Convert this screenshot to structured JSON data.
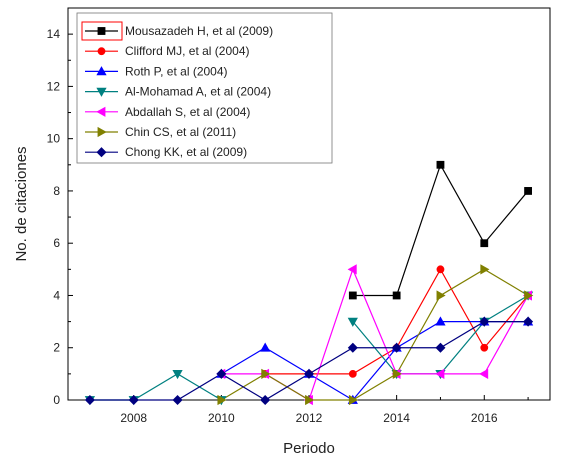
{
  "chart_data": {
    "type": "line",
    "xlabel": "Periodo",
    "ylabel": "No. de citaciones",
    "xlim": [
      2006.5,
      2017.5
    ],
    "ylim": [
      0,
      15
    ],
    "x_ticks": [
      2008,
      2010,
      2012,
      2014,
      2016
    ],
    "y_ticks": [
      0,
      2,
      4,
      6,
      8,
      10,
      12,
      14
    ],
    "grid": false,
    "legend_position": "top-left",
    "x": [
      2007,
      2008,
      2009,
      2010,
      2011,
      2012,
      2013,
      2014,
      2015,
      2016,
      2017
    ],
    "series": [
      {
        "name": "Mousazadeh H, et al (2009)",
        "color": "#000000",
        "marker": "square",
        "values": [
          null,
          null,
          null,
          null,
          null,
          null,
          4,
          4,
          9,
          6,
          8
        ]
      },
      {
        "name": "Clifford MJ, et al (2004)",
        "color": "#ff0000",
        "marker": "circle",
        "values": [
          null,
          null,
          null,
          null,
          1,
          1,
          1,
          2,
          5,
          2,
          4
        ]
      },
      {
        "name": "Roth P, et al (2004)",
        "color": "#0000ff",
        "marker": "triangle-up",
        "values": [
          null,
          null,
          null,
          1,
          2,
          1,
          0,
          2,
          3,
          3,
          3
        ]
      },
      {
        "name": "Al-Mohamad A, et al (2004)",
        "color": "#008080",
        "marker": "triangle-down",
        "values": [
          0,
          0,
          1,
          0,
          null,
          null,
          3,
          1,
          1,
          3,
          4
        ]
      },
      {
        "name": "Abdallah S, et al (2004)",
        "color": "#ff00ff",
        "marker": "triangle-left",
        "values": [
          null,
          null,
          null,
          1,
          1,
          0,
          5,
          1,
          1,
          1,
          4
        ]
      },
      {
        "name": "Chin CS, et al (2011)",
        "color": "#808000",
        "marker": "triangle-right",
        "values": [
          null,
          null,
          null,
          0,
          1,
          0,
          0,
          1,
          4,
          5,
          4
        ]
      },
      {
        "name": "Chong KK, et al (2009)",
        "color": "#000080",
        "marker": "diamond",
        "values": [
          0,
          0,
          0,
          1,
          0,
          1,
          2,
          2,
          2,
          3,
          3
        ]
      }
    ]
  }
}
